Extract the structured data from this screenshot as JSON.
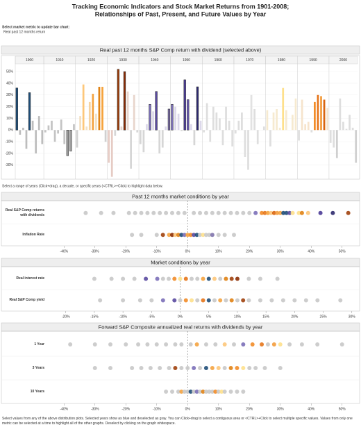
{
  "header": {
    "title": [
      "Tracking Economic Indicators and Stock Market Returns from 1901-2008;",
      "Relationships of  Past, Present, and Future Values by Year"
    ],
    "metric_prompt": "Select market metric to update bar chart:",
    "metric_selected": "Real past 12 months return",
    "bar_instructions": "Select a range of years (Click+drag), a decade, or specific years (<CTRL>+Click) to highlight data below.",
    "footer": "Select values from any of the above distribution plots. Selected years show as blue and deselected as gray. You can Click+drag to select a contiguous area or <CTRL>+Click to select multiple specific values. Values from only one metric can be selected at a time to highlight all of the other graphs. Deselect by clicking on the graph whitespace."
  },
  "chart_data": [
    {
      "type": "bar",
      "title": "Real past 12 months S&P Comp return with dividend (selected above)",
      "ylim": [
        -42,
        56
      ],
      "yticks": [
        {
          "value": -30,
          "label": "-30%"
        },
        {
          "value": -20,
          "label": "-20%"
        },
        {
          "value": -10,
          "label": "-10%"
        },
        {
          "value": 0,
          "label": "0%"
        },
        {
          "value": 10,
          "label": "10%"
        },
        {
          "value": 20,
          "label": "20%"
        },
        {
          "value": 30,
          "label": "30%"
        },
        {
          "value": 40,
          "label": "40%"
        },
        {
          "value": 50,
          "label": "50%"
        }
      ],
      "panels": [
        {
          "label": "1900",
          "values": [
            36,
            -4,
            2,
            -16,
            32,
            8,
            -20,
            12,
            -12
          ],
          "colors": [
            "#1f4e79",
            "#bdbdbd",
            "#bdbdbd",
            "#bdbdbd",
            "#1f4e79",
            "#bdbdbd",
            "#bdbdbd",
            "#bdbdbd",
            "#bdbdbd"
          ]
        },
        {
          "label": "1910",
          "values": [
            -2,
            4,
            8,
            -10,
            -3,
            9,
            -12,
            -22,
            -18,
            5
          ],
          "colors": [
            "#c4c4c4",
            "#c4c4c4",
            "#c4c4c4",
            "#c4c4c4",
            "#c4c4c4",
            "#c4c4c4",
            "#c4c4c4",
            "#9e9e9e",
            "#9e9e9e",
            "#c4c4c4"
          ]
        },
        {
          "label": "1920",
          "values": [
            -15,
            12,
            39,
            3,
            24,
            31,
            14,
            37,
            37,
            -10
          ],
          "colors": [
            "#d0d0d0",
            "#f3e1c4",
            "#fdc77a",
            "#f3e1c4",
            "#f6d3a0",
            "#f4a340",
            "#f3e1c4",
            "#e08214",
            "#f6a33c",
            "#d0d0d0"
          ]
        },
        {
          "label": "1930",
          "values": [
            -28,
            -40,
            -5,
            52,
            3,
            50,
            33,
            -33,
            30,
            -2
          ],
          "colors": [
            "#e6cbc4",
            "#e6cbc4",
            "#d6d6d6",
            "#a0410d",
            "#e8d5cc",
            "#8c2d04",
            "#e8d5cc",
            "#d6d6d6",
            "#e8d5cc",
            "#d6d6d6"
          ]
        },
        {
          "label": "1940",
          "values": [
            -12,
            -19,
            5,
            22,
            16,
            33,
            -20,
            -15,
            3,
            18
          ],
          "colors": [
            "#d6d6d6",
            "#d6d6d6",
            "#dcd8ea",
            "#7b6fb8",
            "#dcd8ea",
            "#5a4aa0",
            "#d6d6d6",
            "#d6d6d6",
            "#dcd8ea",
            "#8073ac"
          ]
        },
        {
          "label": "1950",
          "values": [
            22,
            20,
            14,
            -1,
            43,
            26,
            5,
            -13,
            37,
            8
          ],
          "colors": [
            "#7b6fb8",
            "#dcd8ea",
            "#dcd8ea",
            "#d6d6d6",
            "#4b3c96",
            "#6a5db0",
            "#dcd8ea",
            "#d6d6d6",
            "#2d2a6e",
            "#dcd8ea"
          ]
        },
        {
          "label": "1960",
          "values": [
            -2,
            23,
            -10,
            20,
            15,
            10,
            -13,
            20,
            8,
            -14
          ],
          "colors": [
            "#dedede",
            "#dedede",
            "#dedede",
            "#dedede",
            "#dedede",
            "#dedede",
            "#dedede",
            "#dedede",
            "#dedede",
            "#dedede"
          ]
        },
        {
          "label": "1970",
          "values": [
            -3,
            8,
            15,
            -23,
            -34,
            30,
            18,
            -12,
            0,
            3
          ],
          "colors": [
            "#dedede",
            "#dedede",
            "#dedede",
            "#dedede",
            "#dedede",
            "#e2e2e2",
            "#dedede",
            "#dedede",
            "#dedede",
            "#dedede"
          ]
        },
        {
          "label": "1980",
          "values": [
            17,
            -14,
            15,
            18,
            2,
            36,
            17,
            0,
            13,
            27
          ],
          "colors": [
            "#f6ead0",
            "#dedede",
            "#f6ead0",
            "#f6ead0",
            "#f6ead0",
            "#fee08b",
            "#f6ead0",
            "#f6ead0",
            "#f6ead0",
            "#f6ead0"
          ]
        },
        {
          "label": "1990",
          "values": [
            -9,
            26,
            5,
            7,
            -2,
            24,
            30,
            29,
            26,
            19
          ],
          "colors": [
            "#dedede",
            "#f6e4cc",
            "#f6e4cc",
            "#f6e4cc",
            "#dedede",
            "#f28c28",
            "#e6761b",
            "#f39c3c",
            "#d9650f",
            "#f6e4cc"
          ]
        },
        {
          "label": "2000",
          "values": [
            -11,
            -15,
            -24,
            27,
            7,
            1,
            13,
            2,
            -28
          ],
          "colors": [
            "#dedede",
            "#dedede",
            "#cfcfcf",
            "#dedede",
            "#dedede",
            "#dedede",
            "#dedede",
            "#dedede",
            "#cfcfcf"
          ]
        }
      ]
    },
    {
      "type": "dot",
      "title": "Past 12 months market conditions by year",
      "xlim": [
        -45,
        55
      ],
      "xticks": [
        {
          "value": -40,
          "label": "-40%"
        },
        {
          "value": -30,
          "label": "-30%"
        },
        {
          "value": -20,
          "label": "-20%"
        },
        {
          "value": -10,
          "label": "-10%"
        },
        {
          "value": 0,
          "label": "0%"
        },
        {
          "value": 10,
          "label": "10%"
        },
        {
          "value": 20,
          "label": "20%"
        },
        {
          "value": 30,
          "label": "30%"
        },
        {
          "value": 40,
          "label": "40%"
        },
        {
          "value": 50,
          "label": "50%"
        }
      ],
      "rows": [
        {
          "name": "Real S&P Comp returns with dividends",
          "values": [
            -33,
            -28,
            -24,
            -19,
            -17,
            -15,
            -13,
            -11,
            -9,
            -7,
            -5,
            -3,
            -1,
            2,
            4,
            6,
            8,
            10,
            12,
            14,
            16,
            18,
            20,
            22,
            24,
            25,
            26,
            27,
            28,
            29,
            30,
            31,
            32,
            33,
            34,
            36,
            37,
            39,
            43,
            47,
            52
          ],
          "colors": [
            "#c8c8c8",
            "#c8c8c8",
            "#c8c8c8",
            "#c8c8c8",
            "#c8c8c8",
            "#c8c8c8",
            "#c8c8c8",
            "#c8c8c8",
            "#c8c8c8",
            "#c8c8c8",
            "#c8c8c8",
            "#c8c8c8",
            "#c8c8c8",
            "#c8c8c8",
            "#c8c8c8",
            "#c8c8c8",
            "#c8c8c8",
            "#c8c8c8",
            "#c8c8c8",
            "#c8c8c8",
            "#c8c8c8",
            "#c8c8c8",
            "#c8c8c8",
            "#7b6fb8",
            "#f28c28",
            "#e6761b",
            "#f6a33c",
            "#fdc77a",
            "#d9650f",
            "#f39c3c",
            "#f4a340",
            "#1f4e79",
            "#1f4e79",
            "#5a4aa0",
            "#fee08b",
            "#fee08b",
            "#e08214",
            "#fdc77a",
            "#4b3c96",
            "#2d2a6e",
            "#a0410d"
          ]
        },
        {
          "name": "Inflation Rate",
          "values": [
            -18,
            -15,
            -10,
            -8,
            -6,
            -5,
            -4,
            -3,
            -2,
            -1,
            0,
            1,
            2,
            3,
            4,
            5,
            6,
            7,
            8,
            10,
            12,
            15
          ],
          "colors": [
            "#c8c8c8",
            "#c8c8c8",
            "#c8c8c8",
            "#a0410d",
            "#f4a340",
            "#8c2d04",
            "#fdc77a",
            "#e08214",
            "#1f4e79",
            "#7b6fb8",
            "#f6a33c",
            "#f28c28",
            "#5a4aa0",
            "#1f4e79",
            "#c8c8c8",
            "#fee08b",
            "#c8c8c8",
            "#c8c8c8",
            "#8073ac",
            "#c8c8c8",
            "#c8c8c8",
            "#c8c8c8"
          ]
        }
      ]
    },
    {
      "type": "dot",
      "title": "Market conditions by year",
      "xlim": [
        -23,
        31
      ],
      "xticks": [
        {
          "value": -20,
          "label": "-20%"
        },
        {
          "value": -15,
          "label": "-15%"
        },
        {
          "value": -10,
          "label": "-10%"
        },
        {
          "value": -5,
          "label": "-5%"
        },
        {
          "value": 0,
          "label": "0%"
        },
        {
          "value": 5,
          "label": "5%"
        },
        {
          "value": 10,
          "label": "10%"
        },
        {
          "value": 15,
          "label": "15%"
        },
        {
          "value": 20,
          "label": "20%"
        },
        {
          "value": 25,
          "label": "25%"
        },
        {
          "value": 30,
          "label": "30%"
        }
      ],
      "rows": [
        {
          "name": "Real interest rate",
          "values": [
            -15,
            -12,
            -10,
            -8,
            -6,
            -4,
            -3,
            -2,
            -1,
            0,
            1,
            2,
            3,
            4,
            5,
            6,
            7,
            8,
            9,
            10,
            12,
            14,
            17
          ],
          "colors": [
            "#c8c8c8",
            "#c8c8c8",
            "#c8c8c8",
            "#c8c8c8",
            "#5a4aa0",
            "#7b6fb8",
            "#c8c8c8",
            "#c8c8c8",
            "#f28c28",
            "#fee08b",
            "#e6761b",
            "#c8c8c8",
            "#c8c8c8",
            "#f4a340",
            "#1f4e79",
            "#fdc77a",
            "#c8c8c8",
            "#e08214",
            "#a0410d",
            "#8c2d04",
            "#c8c8c8",
            "#c8c8c8",
            "#c8c8c8"
          ]
        },
        {
          "name": "Real S&P Comp yield",
          "values": [
            -14,
            -10,
            -7,
            -5,
            -3,
            -1,
            0,
            1,
            2,
            3,
            4,
            5,
            6,
            7,
            8,
            9,
            10,
            11,
            12,
            14,
            16,
            18,
            20,
            22,
            24,
            28
          ],
          "colors": [
            "#c8c8c8",
            "#c8c8c8",
            "#c8c8c8",
            "#c8c8c8",
            "#7b6fb8",
            "#5a4aa0",
            "#c8c8c8",
            "#f28c28",
            "#fee08b",
            "#c8c8c8",
            "#e6761b",
            "#1f4e79",
            "#c8c8c8",
            "#f4a340",
            "#c8c8c8",
            "#e08214",
            "#c8c8c8",
            "#a0410d",
            "#c8c8c8",
            "#c8c8c8",
            "#c8c8c8",
            "#c8c8c8",
            "#c8c8c8",
            "#c8c8c8",
            "#c8c8c8",
            "#c8c8c8"
          ]
        }
      ]
    },
    {
      "type": "dot",
      "title": "Forward S&P Composite annualized real returns with dividends by year",
      "xlim": [
        -45,
        55
      ],
      "xticks": [
        {
          "value": -40,
          "label": "-40%"
        },
        {
          "value": -30,
          "label": "-30%"
        },
        {
          "value": -20,
          "label": "-20%"
        },
        {
          "value": -10,
          "label": "-10%"
        },
        {
          "value": 0,
          "label": "0%"
        },
        {
          "value": 10,
          "label": "10%"
        },
        {
          "value": 20,
          "label": "20%"
        },
        {
          "value": 30,
          "label": "30%"
        },
        {
          "value": 40,
          "label": "40%"
        },
        {
          "value": 50,
          "label": "50%"
        }
      ],
      "rows": [
        {
          "name": "1 Year",
          "values": [
            -38,
            -30,
            -25,
            -20,
            -16,
            -13,
            -10,
            -7,
            -4,
            -2,
            1,
            3,
            6,
            9,
            12,
            15,
            18,
            21,
            24,
            26,
            28,
            30,
            33,
            37,
            42,
            50
          ],
          "colors": [
            "#c8c8c8",
            "#c8c8c8",
            "#c8c8c8",
            "#c8c8c8",
            "#c8c8c8",
            "#c8c8c8",
            "#c8c8c8",
            "#c8c8c8",
            "#c8c8c8",
            "#c8c8c8",
            "#c8c8c8",
            "#f4a340",
            "#c8c8c8",
            "#c8c8c8",
            "#fdc77a",
            "#c8c8c8",
            "#7b6fb8",
            "#f28c28",
            "#e6761b",
            "#c8c8c8",
            "#f39c3c",
            "#fee08b",
            "#c8c8c8",
            "#c8c8c8",
            "#c8c8c8",
            "#c8c8c8"
          ]
        },
        {
          "name": "3 Years",
          "values": [
            -30,
            -25,
            -18,
            -15,
            -12,
            -9,
            -6,
            -4,
            -2,
            0,
            2,
            4,
            6,
            8,
            10,
            12,
            14,
            16,
            18,
            20,
            22,
            25,
            30
          ],
          "colors": [
            "#c8c8c8",
            "#c8c8c8",
            "#c8c8c8",
            "#c8c8c8",
            "#c8c8c8",
            "#c8c8c8",
            "#c8c8c8",
            "#a0410d",
            "#c8c8c8",
            "#c8c8c8",
            "#7b6fb8",
            "#c8c8c8",
            "#1f4e79",
            "#f4a340",
            "#fdc77a",
            "#c8c8c8",
            "#e08214",
            "#f28c28",
            "#fee08b",
            "#c8c8c8",
            "#c8c8c8",
            "#c8c8c8",
            "#c8c8c8"
          ]
        },
        {
          "name": "10 Years",
          "values": [
            -7,
            -5,
            -3,
            -2,
            -1,
            0,
            1,
            2,
            3,
            4,
            5,
            6,
            7,
            8,
            9,
            10,
            11,
            12,
            14,
            16,
            18
          ],
          "colors": [
            "#c8c8c8",
            "#c8c8c8",
            "#c8c8c8",
            "#f4a340",
            "#c8c8c8",
            "#c8c8c8",
            "#1f4e79",
            "#c8c8c8",
            "#7b6fb8",
            "#c8c8c8",
            "#e08214",
            "#c8c8c8",
            "#c8c8c8",
            "#c8c8c8",
            "#f28c28",
            "#c8c8c8",
            "#fee08b",
            "#c8c8c8",
            "#c8c8c8",
            "#c8c8c8",
            "#c8c8c8"
          ]
        }
      ]
    }
  ]
}
